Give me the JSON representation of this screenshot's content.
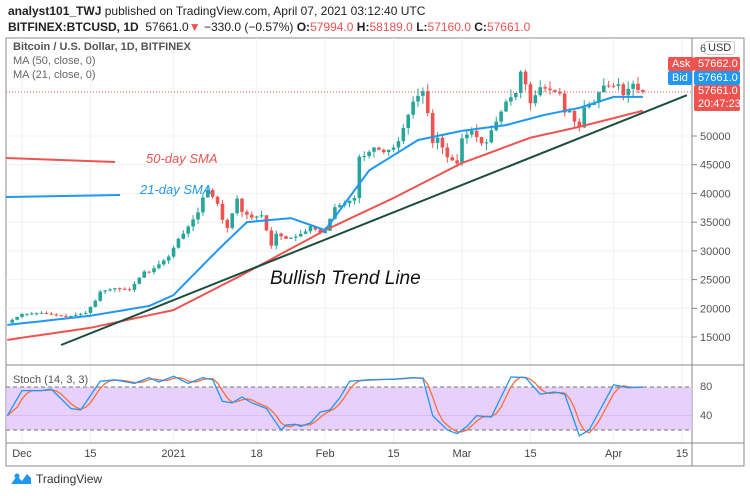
{
  "header": {
    "author": "analyst101_TWJ",
    "published": "published on TradingView.com, April 07, 2021 03:12:40 UTC",
    "symbol": "BITFINEX:BTCUSD, 1D",
    "last": "57661.0",
    "change": "−330.0 (−0.57%)",
    "o_label": "O:",
    "o": "57994.0",
    "h_label": "H:",
    "h": "58189.0",
    "l_label": "L:",
    "l": "57160.0",
    "c_label": "C:",
    "c": "57661.0"
  },
  "legend": {
    "title": "Bitcoin / U.S. Dollar, 1D, BITFINEX",
    "ma50": "MA (50, close, 0)",
    "ma21": "MA (21, close, 0)"
  },
  "annotations": {
    "sma50": "50-day SMA",
    "sma21": "21-day SMA",
    "trend": "Bullish Trend Line"
  },
  "price_axis": {
    "currency": "USD",
    "top_partial": "6",
    "ask_label": "Ask",
    "ask": "57662.0",
    "bid_label": "Bid",
    "bid": "57661.0",
    "last": "57661.0",
    "countdown": "20:47:23"
  },
  "colors": {
    "up": "#26a69a",
    "down": "#ef5350",
    "ma21": "#2196f3",
    "ma50": "#ef5350",
    "trend": "#1b4d3e",
    "stoch_k": "#2196f3",
    "stoch_d": "#ff6d3a",
    "stoch_band": "#e1c4fb"
  },
  "stoch": {
    "label": "Stoch (14, 3, 3)",
    "ticks": [
      "80",
      "40"
    ]
  },
  "footer": {
    "brand": "TradingView"
  },
  "chart_data": {
    "type": "candlestick",
    "title": "Bitcoin / U.S. Dollar, 1D, BITFINEX",
    "x_ticks": [
      [
        "2020-12-01",
        "Dec"
      ],
      [
        "2020-12-15",
        "15"
      ],
      [
        "2021-01-01",
        "2021"
      ],
      [
        "2021-01-18",
        "18"
      ],
      [
        "2021-02-01",
        "Feb"
      ],
      [
        "2021-02-15",
        "15"
      ],
      [
        "2021-03-01",
        "Mar"
      ],
      [
        "2021-03-15",
        "15"
      ],
      [
        "2021-04-01",
        "Apr"
      ],
      [
        "2021-04-15",
        "15"
      ]
    ],
    "y_ticks": [
      15000,
      20000,
      25000,
      30000,
      35000,
      40000,
      45000,
      50000
    ],
    "close": [
      [
        "2020-11-28",
        17500
      ],
      [
        "2020-12-01",
        19000
      ],
      [
        "2020-12-05",
        19200
      ],
      [
        "2020-12-10",
        18500
      ],
      [
        "2020-12-14",
        19200
      ],
      [
        "2020-12-16",
        21300
      ],
      [
        "2020-12-17",
        22900
      ],
      [
        "2020-12-20",
        23500
      ],
      [
        "2020-12-23",
        23200
      ],
      [
        "2020-12-26",
        26400
      ],
      [
        "2020-12-27",
        26300
      ],
      [
        "2020-12-31",
        29000
      ],
      [
        "2021-01-02",
        32100
      ],
      [
        "2021-01-03",
        33000
      ],
      [
        "2021-01-06",
        36700
      ],
      [
        "2021-01-07",
        39300
      ],
      [
        "2021-01-08",
        40600
      ],
      [
        "2021-01-10",
        38200
      ],
      [
        "2021-01-11",
        35400
      ],
      [
        "2021-01-12",
        34000
      ],
      [
        "2021-01-14",
        39100
      ],
      [
        "2021-01-15",
        36800
      ],
      [
        "2021-01-17",
        35800
      ],
      [
        "2021-01-19",
        36200
      ],
      [
        "2021-01-21",
        30900
      ],
      [
        "2021-01-22",
        33000
      ],
      [
        "2021-01-24",
        32100
      ],
      [
        "2021-01-26",
        32500
      ],
      [
        "2021-01-28",
        33400
      ],
      [
        "2021-01-29",
        34300
      ],
      [
        "2021-01-31",
        33100
      ],
      [
        "2021-02-01",
        33500
      ],
      [
        "2021-02-03",
        37600
      ],
      [
        "2021-02-05",
        38300
      ],
      [
        "2021-02-07",
        39200
      ],
      [
        "2021-02-08",
        46400
      ],
      [
        "2021-02-09",
        46500
      ],
      [
        "2021-02-11",
        48000
      ],
      [
        "2021-02-13",
        47200
      ],
      [
        "2021-02-15",
        48000
      ],
      [
        "2021-02-16",
        49100
      ],
      [
        "2021-02-19",
        56000
      ],
      [
        "2021-02-20",
        57000
      ],
      [
        "2021-02-21",
        57800
      ],
      [
        "2021-02-22",
        54000
      ],
      [
        "2021-02-23",
        48800
      ],
      [
        "2021-02-24",
        49700
      ],
      [
        "2021-02-26",
        46300
      ],
      [
        "2021-02-28",
        45200
      ],
      [
        "2021-03-01",
        49600
      ],
      [
        "2021-03-03",
        50900
      ],
      [
        "2021-03-05",
        48700
      ],
      [
        "2021-03-06",
        48900
      ],
      [
        "2021-03-07",
        51000
      ],
      [
        "2021-03-08",
        52500
      ],
      [
        "2021-03-10",
        56000
      ],
      [
        "2021-03-12",
        57500
      ],
      [
        "2021-03-13",
        61200
      ],
      [
        "2021-03-14",
        59000
      ],
      [
        "2021-03-15",
        55700
      ],
      [
        "2021-03-17",
        58500
      ],
      [
        "2021-03-19",
        58000
      ],
      [
        "2021-03-21",
        57400
      ],
      [
        "2021-03-22",
        54100
      ],
      [
        "2021-03-23",
        54400
      ],
      [
        "2021-03-24",
        52500
      ],
      [
        "2021-03-25",
        51500
      ],
      [
        "2021-03-26",
        55000
      ],
      [
        "2021-03-28",
        55800
      ],
      [
        "2021-03-29",
        57600
      ],
      [
        "2021-03-30",
        58800
      ],
      [
        "2021-04-01",
        58700
      ],
      [
        "2021-04-02",
        59000
      ],
      [
        "2021-04-03",
        57100
      ],
      [
        "2021-04-04",
        58200
      ],
      [
        "2021-04-05",
        59100
      ],
      [
        "2021-04-06",
        58000
      ],
      [
        "2021-04-07",
        57661
      ]
    ],
    "ma21": [
      [
        "2020-11-28",
        17100
      ],
      [
        "2020-12-15",
        18700
      ],
      [
        "2020-12-27",
        20400
      ],
      [
        "2021-01-01",
        22300
      ],
      [
        "2021-01-10",
        30100
      ],
      [
        "2021-01-16",
        35000
      ],
      [
        "2021-01-25",
        35700
      ],
      [
        "2021-02-01",
        33600
      ],
      [
        "2021-02-10",
        44000
      ],
      [
        "2021-02-20",
        49300
      ],
      [
        "2021-03-01",
        50900
      ],
      [
        "2021-03-10",
        51900
      ],
      [
        "2021-03-18",
        53700
      ],
      [
        "2021-03-25",
        54900
      ],
      [
        "2021-04-01",
        56800
      ],
      [
        "2021-04-07",
        56800
      ]
    ],
    "ma50": [
      [
        "2020-11-28",
        14500
      ],
      [
        "2020-12-15",
        16600
      ],
      [
        "2021-01-01",
        19700
      ],
      [
        "2021-01-15",
        25800
      ],
      [
        "2021-02-01",
        33600
      ],
      [
        "2021-02-15",
        39200
      ],
      [
        "2021-03-01",
        45300
      ],
      [
        "2021-03-15",
        49700
      ],
      [
        "2021-03-25",
        51600
      ],
      [
        "2021-04-07",
        54400
      ]
    ],
    "trend_line": [
      [
        "2020-12-09",
        13600
      ],
      [
        "2021-04-16",
        57100
      ]
    ],
    "stoch_k": [
      [
        "2020-11-28",
        40
      ],
      [
        "2020-12-01",
        75
      ],
      [
        "2020-12-05",
        75
      ],
      [
        "2020-12-07",
        77
      ],
      [
        "2020-12-11",
        50
      ],
      [
        "2020-12-13",
        48
      ],
      [
        "2020-12-17",
        88
      ],
      [
        "2020-12-20",
        90
      ],
      [
        "2020-12-24",
        85
      ],
      [
        "2020-12-27",
        93
      ],
      [
        "2020-12-29",
        87
      ],
      [
        "2021-01-01",
        95
      ],
      [
        "2021-01-04",
        85
      ],
      [
        "2021-01-07",
        93
      ],
      [
        "2021-01-09",
        90
      ],
      [
        "2021-01-11",
        60
      ],
      [
        "2021-01-13",
        58
      ],
      [
        "2021-01-15",
        66
      ],
      [
        "2021-01-17",
        58
      ],
      [
        "2021-01-20",
        50
      ],
      [
        "2021-01-23",
        20
      ],
      [
        "2021-01-24",
        27
      ],
      [
        "2021-01-26",
        28
      ],
      [
        "2021-01-27",
        25
      ],
      [
        "2021-01-29",
        30
      ],
      [
        "2021-01-31",
        45
      ],
      [
        "2021-02-02",
        48
      ],
      [
        "2021-02-04",
        65
      ],
      [
        "2021-02-06",
        88
      ],
      [
        "2021-02-10",
        90
      ],
      [
        "2021-02-15",
        91
      ],
      [
        "2021-02-19",
        93
      ],
      [
        "2021-02-21",
        92
      ],
      [
        "2021-02-23",
        40
      ],
      [
        "2021-02-26",
        20
      ],
      [
        "2021-02-28",
        15
      ],
      [
        "2021-03-02",
        25
      ],
      [
        "2021-03-04",
        40
      ],
      [
        "2021-03-07",
        38
      ],
      [
        "2021-03-11",
        94
      ],
      [
        "2021-03-14",
        93
      ],
      [
        "2021-03-17",
        70
      ],
      [
        "2021-03-20",
        73
      ],
      [
        "2021-03-22",
        70
      ],
      [
        "2021-03-25",
        12
      ],
      [
        "2021-03-27",
        20
      ],
      [
        "2021-04-01",
        83
      ],
      [
        "2021-04-04",
        79
      ],
      [
        "2021-04-07",
        80
      ]
    ],
    "stoch_levels": [
      80,
      20
    ]
  }
}
